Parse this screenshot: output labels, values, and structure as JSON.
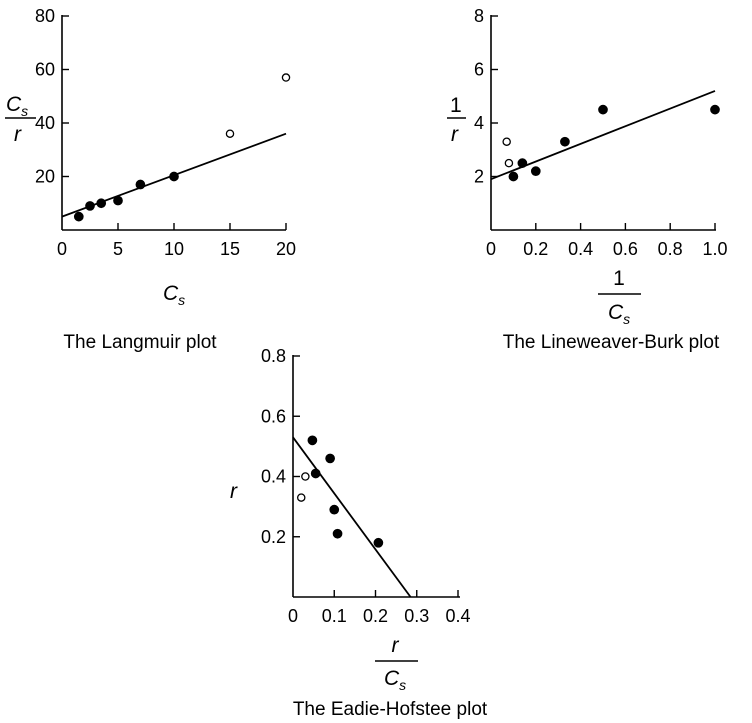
{
  "chart_data": [
    {
      "type": "scatter",
      "title": "The Langmuir plot",
      "xlabel": {
        "main": "C",
        "sub": "s"
      },
      "ylabel": {
        "num_main": "C",
        "num_sub": "s",
        "den": "r"
      },
      "xlim": [
        0,
        20
      ],
      "ylim": [
        0,
        80
      ],
      "xticks": [
        0,
        5,
        10,
        15,
        20
      ],
      "yticks": [
        20,
        40,
        60,
        80
      ],
      "series": [
        {
          "marker": "filled",
          "x": [
            1.5,
            2.5,
            3.5,
            5.0,
            7.0,
            10.0
          ],
          "y": [
            5,
            9,
            10,
            11,
            17,
            20
          ]
        },
        {
          "marker": "open",
          "x": [
            15.0,
            20.0
          ],
          "y": [
            36,
            57
          ]
        }
      ],
      "fit_line": {
        "x": [
          0,
          20
        ],
        "y": [
          5,
          36
        ]
      },
      "grid": false
    },
    {
      "type": "scatter",
      "title": "The Lineweaver-Burk plot",
      "xlabel": {
        "num": "1",
        "den_main": "C",
        "den_sub": "s"
      },
      "ylabel": {
        "num": "1",
        "den": "r"
      },
      "xlim": [
        0,
        1.0
      ],
      "ylim": [
        0,
        8
      ],
      "xticks": [
        "0",
        "0.2",
        "0.4",
        "0.6",
        "0.8",
        "1.0"
      ],
      "xtick_values": [
        0,
        0.2,
        0.4,
        0.6,
        0.8,
        1.0
      ],
      "yticks": [
        2,
        4,
        6,
        8
      ],
      "series": [
        {
          "marker": "filled",
          "x": [
            0.1,
            0.14,
            0.2,
            0.33,
            0.5,
            1.0
          ],
          "y": [
            2.0,
            2.5,
            2.2,
            3.3,
            4.5,
            4.5
          ]
        },
        {
          "marker": "open",
          "x": [
            0.07,
            0.08
          ],
          "y": [
            3.3,
            2.5
          ]
        }
      ],
      "fit_line": {
        "x": [
          0,
          1.0
        ],
        "y": [
          1.9,
          5.2
        ]
      },
      "grid": false
    },
    {
      "type": "scatter",
      "title": "The Eadie-Hofstee plot",
      "xlabel": {
        "num": "r",
        "den_main": "C",
        "den_sub": "s"
      },
      "ylabel": {
        "main": "r"
      },
      "xlim": [
        0,
        0.4
      ],
      "ylim": [
        0,
        0.8
      ],
      "xticks": [
        "0",
        "0.1",
        "0.2",
        "0.3",
        "0.4"
      ],
      "xtick_values": [
        0,
        0.1,
        0.2,
        0.3,
        0.4
      ],
      "yticks": [
        "0.2",
        "0.4",
        "0.6",
        "0.8"
      ],
      "ytick_values": [
        0.2,
        0.4,
        0.6,
        0.8
      ],
      "series": [
        {
          "marker": "filled",
          "x": [
            0.047,
            0.055,
            0.09,
            0.1,
            0.108,
            0.207
          ],
          "y": [
            0.52,
            0.41,
            0.46,
            0.29,
            0.21,
            0.18
          ]
        },
        {
          "marker": "open",
          "x": [
            0.03,
            0.02
          ],
          "y": [
            0.4,
            0.33
          ]
        }
      ],
      "fit_line": {
        "x": [
          0,
          0.285
        ],
        "y": [
          0.53,
          0
        ]
      },
      "grid": false
    }
  ]
}
